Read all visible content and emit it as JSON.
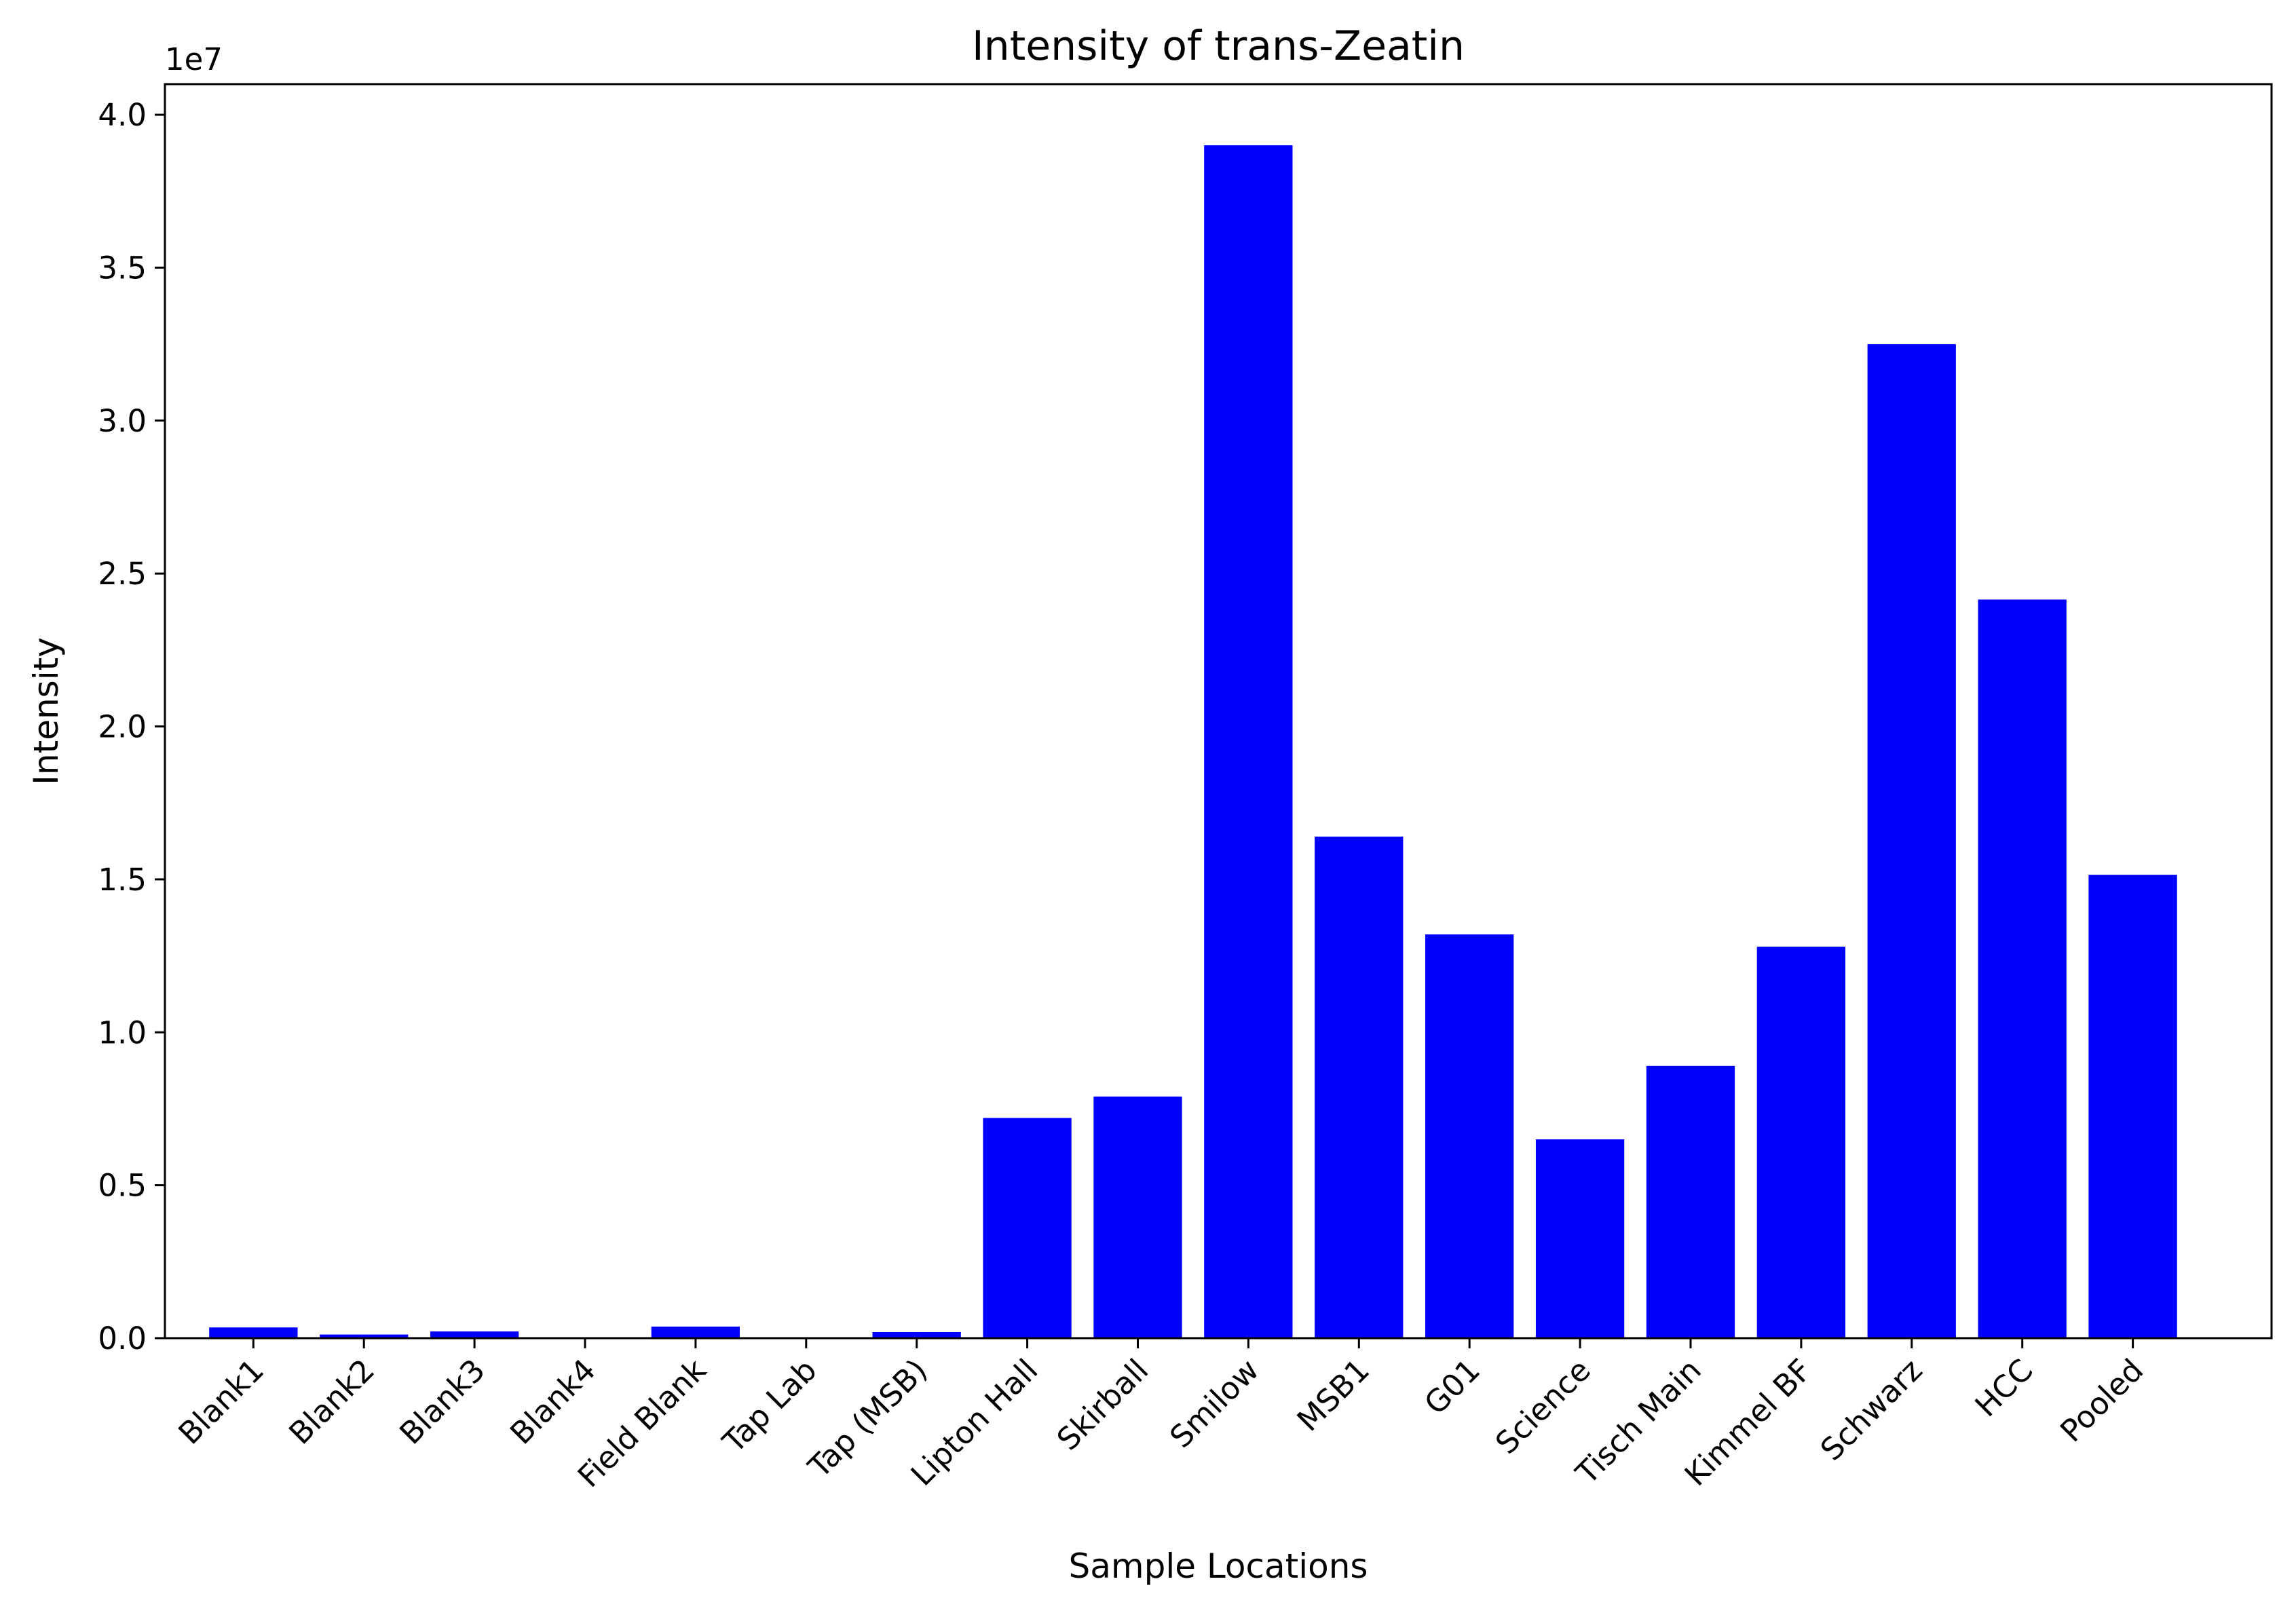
{
  "chart_data": {
    "type": "bar",
    "title": "Intensity of trans-Zeatin",
    "xlabel": "Sample Locations",
    "ylabel": "Intensity",
    "y_offset_label": "1e7",
    "y_scale": 10000000,
    "ylim": [
      0,
      4.1
    ],
    "yticks": [
      0.0,
      0.5,
      1.0,
      1.5,
      2.0,
      2.5,
      3.0,
      3.5,
      4.0
    ],
    "ytick_labels": [
      "0.0",
      "0.5",
      "1.0",
      "1.5",
      "2.0",
      "2.5",
      "3.0",
      "3.5",
      "4.0"
    ],
    "grid": false,
    "bar_color": "#0000ff",
    "categories": [
      "Blank1",
      "Blank2",
      "Blank3",
      "Blank4",
      "Field Blank",
      "Tap Lab",
      "Tap (MSB)",
      "Lipton Hall",
      "Skirball",
      "Smilow",
      "MSB1",
      "G01",
      "Science",
      "Tisch Main",
      "Kimmel BF",
      "Schwarz",
      "HCC",
      "Pooled"
    ],
    "values": [
      0.035,
      0.012,
      0.022,
      0.0,
      0.038,
      0.0,
      0.02,
      0.72,
      0.79,
      3.9,
      1.64,
      1.32,
      0.65,
      0.89,
      1.28,
      3.25,
      2.415,
      1.515
    ]
  }
}
